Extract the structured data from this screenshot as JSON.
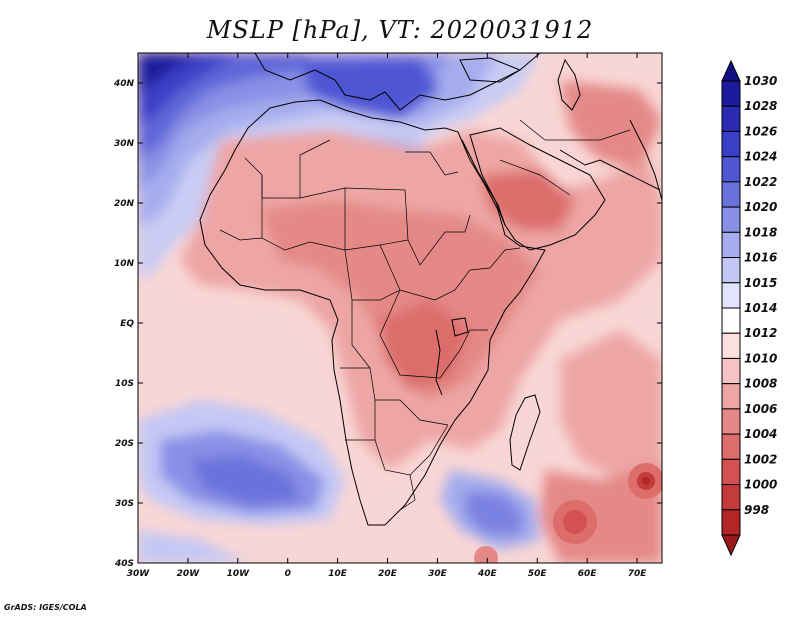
{
  "title": "MSLP [hPa], VT: 2020031912",
  "footer": "GrADS: IGES/COLA",
  "map": {
    "lon_range": [
      -30,
      75
    ],
    "lat_range": [
      -40,
      45
    ],
    "lon_ticks": [
      {
        "value": -30,
        "label": "30W"
      },
      {
        "value": -20,
        "label": "20W"
      },
      {
        "value": -10,
        "label": "10W"
      },
      {
        "value": 0,
        "label": "0"
      },
      {
        "value": 10,
        "label": "10E"
      },
      {
        "value": 20,
        "label": "20E"
      },
      {
        "value": 30,
        "label": "30E"
      },
      {
        "value": 40,
        "label": "40E"
      },
      {
        "value": 50,
        "label": "50E"
      },
      {
        "value": 60,
        "label": "60E"
      },
      {
        "value": 70,
        "label": "70E"
      }
    ],
    "lat_ticks": [
      {
        "value": 40,
        "label": "40N"
      },
      {
        "value": 30,
        "label": "30N"
      },
      {
        "value": 20,
        "label": "20N"
      },
      {
        "value": 10,
        "label": "10N"
      },
      {
        "value": 0,
        "label": "EQ"
      },
      {
        "value": -10,
        "label": "10S"
      },
      {
        "value": -20,
        "label": "20S"
      },
      {
        "value": -30,
        "label": "30S"
      },
      {
        "value": -40,
        "label": "40S"
      }
    ],
    "pressure_features": [
      {
        "kind": "high",
        "lon": -27,
        "lat": 42,
        "value": 1030
      },
      {
        "kind": "high",
        "lon": -18,
        "lat": 35,
        "value": 1026
      },
      {
        "kind": "high",
        "lon": 22,
        "lat": 38,
        "value": 1026
      },
      {
        "kind": "high",
        "lon": 8,
        "lat": 32,
        "value": 1022
      },
      {
        "kind": "high",
        "lon": -10,
        "lat": -26,
        "value": 1022
      },
      {
        "kind": "high",
        "lon": 44,
        "lat": -34,
        "value": 1020
      },
      {
        "kind": "low",
        "lon": 57,
        "lat": -33,
        "value": 1004
      },
      {
        "kind": "low",
        "lon": 72,
        "lat": -26,
        "value": 1002
      },
      {
        "kind": "low",
        "lon": 52,
        "lat": 22,
        "value": 1008
      },
      {
        "kind": "low",
        "lon": 24,
        "lat": 5,
        "value": 1008
      }
    ]
  },
  "colorbar": {
    "levels": [
      {
        "label": "1030",
        "color": "#1c1a9c"
      },
      {
        "label": "1028",
        "color": "#2a2ab4"
      },
      {
        "label": "1026",
        "color": "#3a40c6"
      },
      {
        "label": "1024",
        "color": "#4f56d4"
      },
      {
        "label": "1022",
        "color": "#6a72dd"
      },
      {
        "label": "1020",
        "color": "#8890e6"
      },
      {
        "label": "1018",
        "color": "#a6adee"
      },
      {
        "label": "1016",
        "color": "#c4c8f5"
      },
      {
        "label": "1015",
        "color": "#e2e4fb"
      },
      {
        "label": "1014",
        "color": "#ffffff"
      },
      {
        "label": "1012",
        "color": "#fbe0df"
      },
      {
        "label": "1010",
        "color": "#f5c3c1"
      },
      {
        "label": "1008",
        "color": "#eda6a4"
      },
      {
        "label": "1006",
        "color": "#e48987"
      },
      {
        "label": "1004",
        "color": "#dc6d6b"
      },
      {
        "label": "1002",
        "color": "#d35150"
      },
      {
        "label": "1000",
        "color": "#c53a3a"
      },
      {
        "label": "998",
        "color": "#b32626"
      }
    ],
    "top_color": "#0f0e85",
    "bottom_color": "#991a1a"
  }
}
